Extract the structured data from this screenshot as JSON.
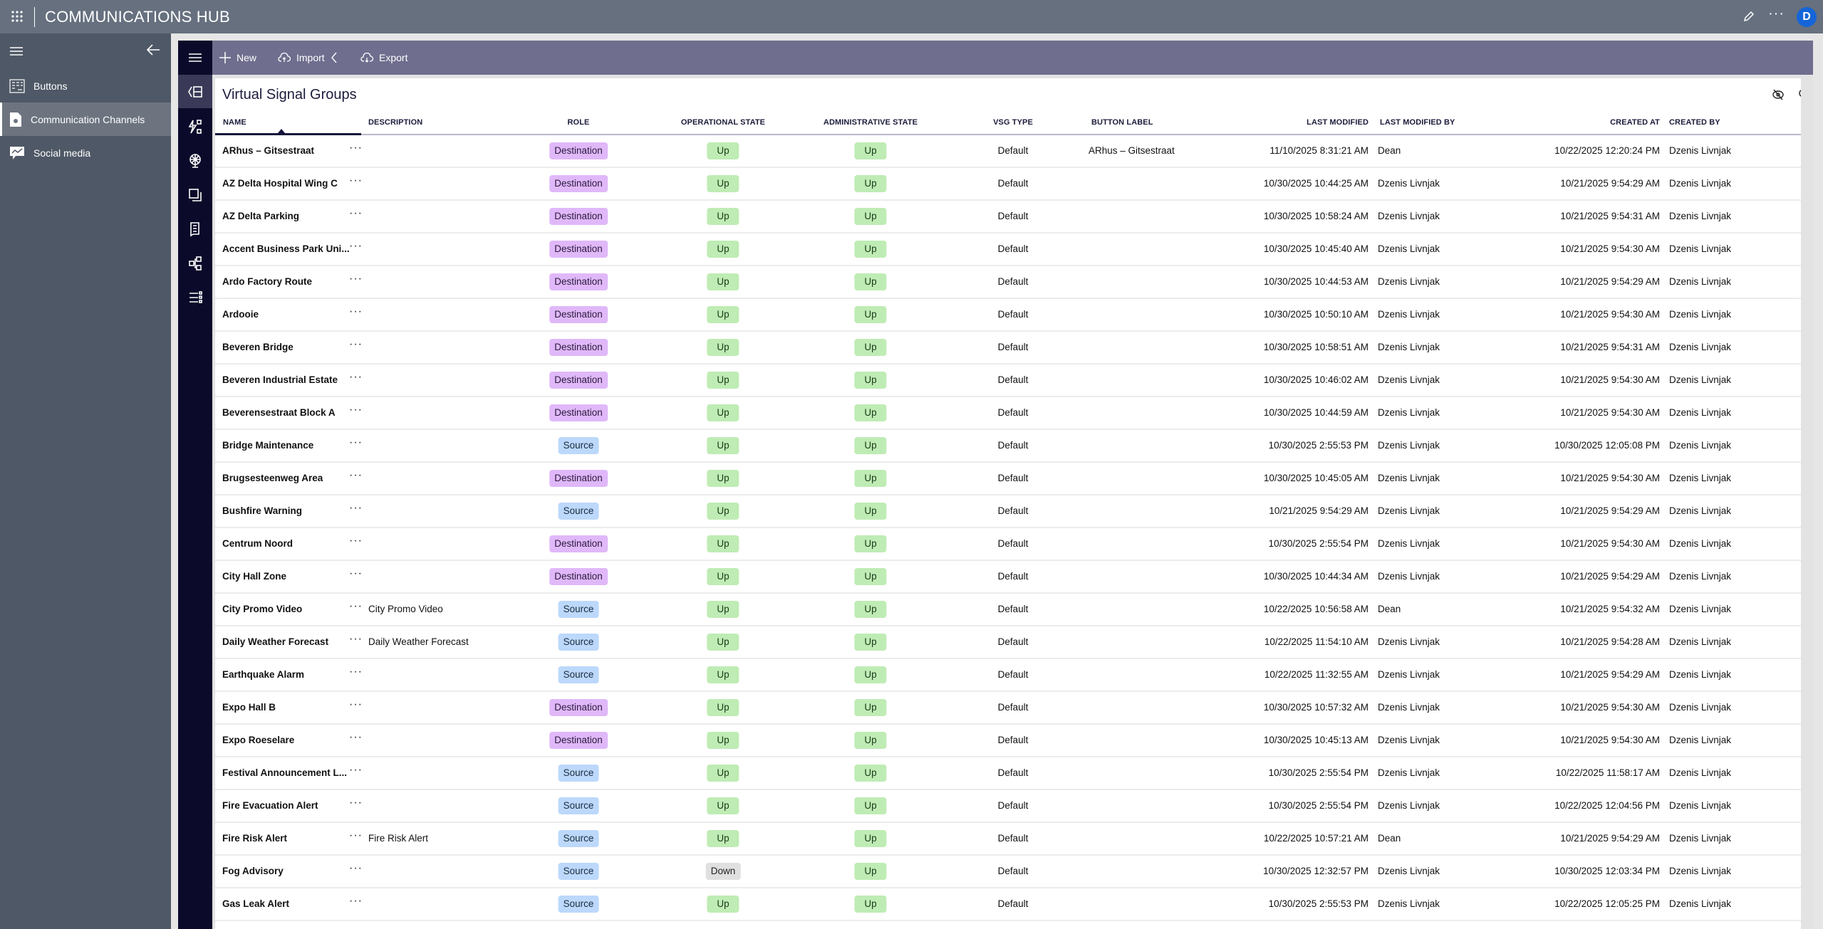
{
  "app": {
    "title": "COMMUNICATIONS HUB",
    "avatar_initial": "D",
    "accent": "#1565d8"
  },
  "sidebar": {
    "items": [
      {
        "label": "Buttons",
        "icon": "buttons-grid-icon"
      },
      {
        "label": "Communication Channels",
        "icon": "document-gear-icon",
        "active": true
      },
      {
        "label": "Social media",
        "icon": "chat-chart-icon"
      }
    ]
  },
  "toolbar": {
    "new_label": "New",
    "import_label": "Import",
    "export_label": "Export"
  },
  "card": {
    "title": "Virtual Signal Groups"
  },
  "columns": {
    "name": "NAME",
    "description": "DESCRIPTION",
    "role": "ROLE",
    "op_state": "OPERATIONAL STATE",
    "admin_state": "ADMINISTRATIVE STATE",
    "vsg_type": "VSG TYPE",
    "button_label": "BUTTON LABEL",
    "last_modified": "LAST MODIFIED",
    "last_modified_by": "LAST MODIFIED BY",
    "created_at": "CREATED AT",
    "created_by": "CREATED BY"
  },
  "badge_colors": {
    "Destination": "#e0b8f9",
    "Source": "#bcd8fb",
    "Up": "#bfecb4",
    "Down": "#e0e0e0"
  },
  "rows": [
    {
      "name": "ARhus – Gitsestraat",
      "description": "",
      "role": "Destination",
      "op": "Up",
      "admin": "Up",
      "type": "Default",
      "button_label": "ARhus – Gitsestraat",
      "modified": "11/10/2025 8:31:21 AM",
      "modified_by": "Dean",
      "created": "10/22/2025 12:20:24 PM",
      "created_by": "Dzenis Livnjak"
    },
    {
      "name": "AZ Delta Hospital Wing C",
      "description": "",
      "role": "Destination",
      "op": "Up",
      "admin": "Up",
      "type": "Default",
      "button_label": "",
      "modified": "10/30/2025 10:44:25 AM",
      "modified_by": "Dzenis Livnjak",
      "created": "10/21/2025 9:54:29 AM",
      "created_by": "Dzenis Livnjak"
    },
    {
      "name": "AZ Delta Parking",
      "description": "",
      "role": "Destination",
      "op": "Up",
      "admin": "Up",
      "type": "Default",
      "button_label": "",
      "modified": "10/30/2025 10:58:24 AM",
      "modified_by": "Dzenis Livnjak",
      "created": "10/21/2025 9:54:31 AM",
      "created_by": "Dzenis Livnjak"
    },
    {
      "name": "Accent Business Park Uni...",
      "description": "",
      "role": "Destination",
      "op": "Up",
      "admin": "Up",
      "type": "Default",
      "button_label": "",
      "modified": "10/30/2025 10:45:40 AM",
      "modified_by": "Dzenis Livnjak",
      "created": "10/21/2025 9:54:30 AM",
      "created_by": "Dzenis Livnjak"
    },
    {
      "name": "Ardo Factory Route",
      "description": "",
      "role": "Destination",
      "op": "Up",
      "admin": "Up",
      "type": "Default",
      "button_label": "",
      "modified": "10/30/2025 10:44:53 AM",
      "modified_by": "Dzenis Livnjak",
      "created": "10/21/2025 9:54:29 AM",
      "created_by": "Dzenis Livnjak"
    },
    {
      "name": "Ardooie",
      "description": "",
      "role": "Destination",
      "op": "Up",
      "admin": "Up",
      "type": "Default",
      "button_label": "",
      "modified": "10/30/2025 10:50:10 AM",
      "modified_by": "Dzenis Livnjak",
      "created": "10/21/2025 9:54:30 AM",
      "created_by": "Dzenis Livnjak"
    },
    {
      "name": "Beveren Bridge",
      "description": "",
      "role": "Destination",
      "op": "Up",
      "admin": "Up",
      "type": "Default",
      "button_label": "",
      "modified": "10/30/2025 10:58:51 AM",
      "modified_by": "Dzenis Livnjak",
      "created": "10/21/2025 9:54:31 AM",
      "created_by": "Dzenis Livnjak"
    },
    {
      "name": "Beveren Industrial Estate",
      "description": "",
      "role": "Destination",
      "op": "Up",
      "admin": "Up",
      "type": "Default",
      "button_label": "",
      "modified": "10/30/2025 10:46:02 AM",
      "modified_by": "Dzenis Livnjak",
      "created": "10/21/2025 9:54:30 AM",
      "created_by": "Dzenis Livnjak"
    },
    {
      "name": "Beverensestraat Block A",
      "description": "",
      "role": "Destination",
      "op": "Up",
      "admin": "Up",
      "type": "Default",
      "button_label": "",
      "modified": "10/30/2025 10:44:59 AM",
      "modified_by": "Dzenis Livnjak",
      "created": "10/21/2025 9:54:30 AM",
      "created_by": "Dzenis Livnjak"
    },
    {
      "name": "Bridge Maintenance",
      "description": "",
      "role": "Source",
      "op": "Up",
      "admin": "Up",
      "type": "Default",
      "button_label": "",
      "modified": "10/30/2025 2:55:53 PM",
      "modified_by": "Dzenis Livnjak",
      "created": "10/30/2025 12:05:08 PM",
      "created_by": "Dzenis Livnjak"
    },
    {
      "name": "Brugsesteenweg Area",
      "description": "",
      "role": "Destination",
      "op": "Up",
      "admin": "Up",
      "type": "Default",
      "button_label": "",
      "modified": "10/30/2025 10:45:05 AM",
      "modified_by": "Dzenis Livnjak",
      "created": "10/21/2025 9:54:30 AM",
      "created_by": "Dzenis Livnjak"
    },
    {
      "name": "Bushfire Warning",
      "description": "",
      "role": "Source",
      "op": "Up",
      "admin": "Up",
      "type": "Default",
      "button_label": "",
      "modified": "10/21/2025 9:54:29 AM",
      "modified_by": "Dzenis Livnjak",
      "created": "10/21/2025 9:54:29 AM",
      "created_by": "Dzenis Livnjak"
    },
    {
      "name": "Centrum Noord",
      "description": "",
      "role": "Destination",
      "op": "Up",
      "admin": "Up",
      "type": "Default",
      "button_label": "",
      "modified": "10/30/2025 2:55:54 PM",
      "modified_by": "Dzenis Livnjak",
      "created": "10/21/2025 9:54:30 AM",
      "created_by": "Dzenis Livnjak"
    },
    {
      "name": "City Hall Zone",
      "description": "",
      "role": "Destination",
      "op": "Up",
      "admin": "Up",
      "type": "Default",
      "button_label": "",
      "modified": "10/30/2025 10:44:34 AM",
      "modified_by": "Dzenis Livnjak",
      "created": "10/21/2025 9:54:29 AM",
      "created_by": "Dzenis Livnjak"
    },
    {
      "name": "City Promo Video",
      "description": "City Promo Video",
      "role": "Source",
      "op": "Up",
      "admin": "Up",
      "type": "Default",
      "button_label": "",
      "modified": "10/22/2025 10:56:58 AM",
      "modified_by": "Dean",
      "created": "10/21/2025 9:54:32 AM",
      "created_by": "Dzenis Livnjak"
    },
    {
      "name": "Daily Weather Forecast",
      "description": "Daily Weather Forecast",
      "role": "Source",
      "op": "Up",
      "admin": "Up",
      "type": "Default",
      "button_label": "",
      "modified": "10/22/2025 11:54:10 AM",
      "modified_by": "Dzenis Livnjak",
      "created": "10/21/2025 9:54:28 AM",
      "created_by": "Dzenis Livnjak"
    },
    {
      "name": "Earthquake Alarm",
      "description": "",
      "role": "Source",
      "op": "Up",
      "admin": "Up",
      "type": "Default",
      "button_label": "",
      "modified": "10/22/2025 11:32:55 AM",
      "modified_by": "Dzenis Livnjak",
      "created": "10/21/2025 9:54:29 AM",
      "created_by": "Dzenis Livnjak"
    },
    {
      "name": "Expo Hall B",
      "description": "",
      "role": "Destination",
      "op": "Up",
      "admin": "Up",
      "type": "Default",
      "button_label": "",
      "modified": "10/30/2025 10:57:32 AM",
      "modified_by": "Dzenis Livnjak",
      "created": "10/21/2025 9:54:30 AM",
      "created_by": "Dzenis Livnjak"
    },
    {
      "name": "Expo Roeselare",
      "description": "",
      "role": "Destination",
      "op": "Up",
      "admin": "Up",
      "type": "Default",
      "button_label": "",
      "modified": "10/30/2025 10:45:13 AM",
      "modified_by": "Dzenis Livnjak",
      "created": "10/21/2025 9:54:30 AM",
      "created_by": "Dzenis Livnjak"
    },
    {
      "name": "Festival Announcement L...",
      "description": "",
      "role": "Source",
      "op": "Up",
      "admin": "Up",
      "type": "Default",
      "button_label": "",
      "modified": "10/30/2025 2:55:54 PM",
      "modified_by": "Dzenis Livnjak",
      "created": "10/22/2025 11:58:17 AM",
      "created_by": "Dzenis Livnjak"
    },
    {
      "name": "Fire Evacuation Alert",
      "description": "",
      "role": "Source",
      "op": "Up",
      "admin": "Up",
      "type": "Default",
      "button_label": "",
      "modified": "10/30/2025 2:55:54 PM",
      "modified_by": "Dzenis Livnjak",
      "created": "10/22/2025 12:04:56 PM",
      "created_by": "Dzenis Livnjak"
    },
    {
      "name": "Fire Risk Alert",
      "description": "Fire Risk Alert",
      "role": "Source",
      "op": "Up",
      "admin": "Up",
      "type": "Default",
      "button_label": "",
      "modified": "10/22/2025 10:57:21 AM",
      "modified_by": "Dean",
      "created": "10/21/2025 9:54:29 AM",
      "created_by": "Dzenis Livnjak"
    },
    {
      "name": "Fog Advisory",
      "description": "",
      "role": "Source",
      "op": "Down",
      "admin": "Up",
      "type": "Default",
      "button_label": "",
      "modified": "10/30/2025 12:32:57 PM",
      "modified_by": "Dzenis Livnjak",
      "created": "10/30/2025 12:03:34 PM",
      "created_by": "Dzenis Livnjak"
    },
    {
      "name": "Gas Leak Alert",
      "description": "",
      "role": "Source",
      "op": "Up",
      "admin": "Up",
      "type": "Default",
      "button_label": "",
      "modified": "10/30/2025 2:55:53 PM",
      "modified_by": "Dzenis Livnjak",
      "created": "10/22/2025 12:05:25 PM",
      "created_by": "Dzenis Livnjak"
    }
  ]
}
